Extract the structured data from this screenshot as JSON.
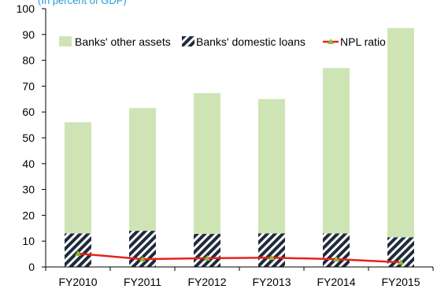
{
  "chart_data": {
    "type": "bar",
    "subtitle": "(In percent of GDP)",
    "categories": [
      "FY2010",
      "FY2011",
      "FY2012",
      "FY2013",
      "FY2014",
      "FY2015"
    ],
    "ylim": [
      0,
      100
    ],
    "yticks": [
      0,
      10,
      20,
      30,
      40,
      50,
      60,
      70,
      80,
      90,
      100
    ],
    "series": [
      {
        "name": "Banks' other assets",
        "type": "bar-stacked",
        "color": "#cfe4b5",
        "values": [
          43,
          47.5,
          54.5,
          52,
          64,
          81
        ]
      },
      {
        "name": "Banks' domestic loans",
        "type": "bar-stacked-hatched",
        "color": "#1f2a3c",
        "values": [
          13,
          14,
          12.8,
          13,
          13,
          11.5
        ]
      },
      {
        "name": "NPL ratio",
        "type": "line",
        "color": "#e8221b",
        "marker_color": "#8dbb3c",
        "values": [
          5.2,
          3.0,
          3.4,
          3.6,
          3.0,
          1.8
        ]
      }
    ],
    "legend_position": "top",
    "grid": false
  }
}
